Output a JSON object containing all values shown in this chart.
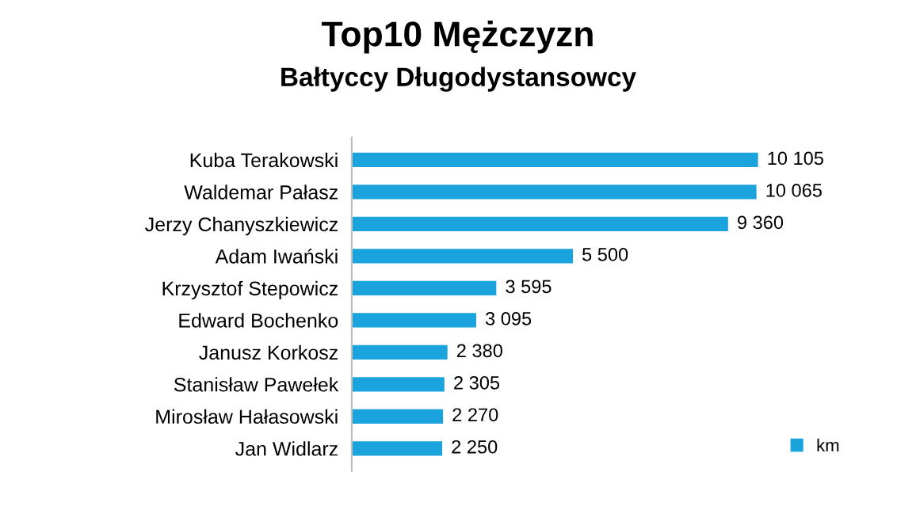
{
  "chart_data": {
    "type": "bar",
    "orientation": "horizontal",
    "title": "Top10 Mężczyzn",
    "subtitle": "Bałtyccy Długodystansowcy",
    "categories": [
      "Kuba Terakowski",
      "Waldemar Pałasz",
      "Jerzy Chanyszkiewicz",
      "Adam Iwański",
      "Krzysztof Stepowicz",
      "Edward Bochenko",
      "Janusz Korkosz",
      "Stanisław Pawełek",
      "Mirosław Hałasowski",
      "Jan Widlarz"
    ],
    "series": [
      {
        "name": "km",
        "color": "#1aa3dc",
        "values": [
          10105,
          10065,
          9360,
          5500,
          3595,
          3095,
          2380,
          2305,
          2270,
          2250
        ],
        "value_labels": [
          "10 105",
          "10 065",
          "9 360",
          "5 500",
          "3 595",
          "3 095",
          "2 380",
          "2 305",
          "2 270",
          "2 250"
        ]
      }
    ],
    "legend": "bottom right",
    "grid": false
  }
}
